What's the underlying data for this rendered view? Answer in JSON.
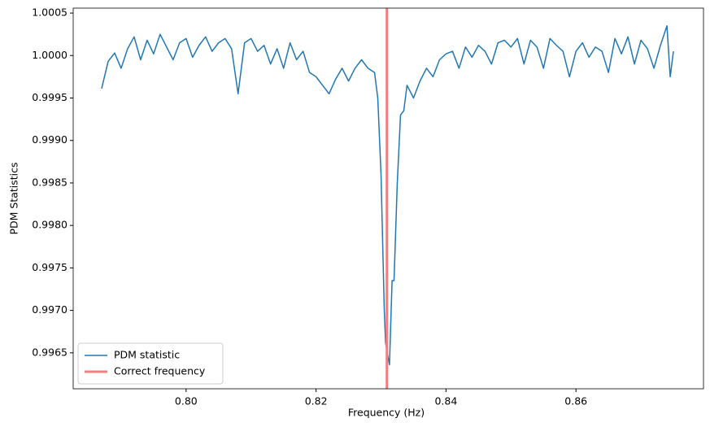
{
  "chart_data": {
    "type": "line",
    "xlabel": "Frequency (Hz)",
    "ylabel": "PDM Statistics",
    "x": [
      0.787,
      0.788,
      0.789,
      0.79,
      0.791,
      0.792,
      0.793,
      0.794,
      0.795,
      0.796,
      0.797,
      0.798,
      0.799,
      0.8,
      0.801,
      0.802,
      0.803,
      0.804,
      0.805,
      0.806,
      0.807,
      0.808,
      0.809,
      0.81,
      0.811,
      0.812,
      0.813,
      0.814,
      0.815,
      0.816,
      0.817,
      0.818,
      0.819,
      0.82,
      0.821,
      0.822,
      0.823,
      0.824,
      0.825,
      0.826,
      0.827,
      0.828,
      0.829,
      0.8295,
      0.83,
      0.8305,
      0.8307,
      0.831,
      0.8313,
      0.8317,
      0.832,
      0.8325,
      0.833,
      0.8335,
      0.834,
      0.835,
      0.836,
      0.837,
      0.838,
      0.839,
      0.84,
      0.841,
      0.842,
      0.843,
      0.844,
      0.845,
      0.846,
      0.847,
      0.848,
      0.849,
      0.85,
      0.851,
      0.852,
      0.853,
      0.854,
      0.855,
      0.856,
      0.857,
      0.858,
      0.859,
      0.86,
      0.861,
      0.862,
      0.863,
      0.864,
      0.865,
      0.866,
      0.867,
      0.868,
      0.869,
      0.87,
      0.871,
      0.872,
      0.873,
      0.874,
      0.8745,
      0.875
    ],
    "series": [
      {
        "name": "PDM statistic",
        "color": "#1f77b4",
        "values": [
          0.99961,
          0.99993,
          1.00003,
          0.99985,
          1.00008,
          1.00022,
          0.99995,
          1.00018,
          1.00002,
          1.00025,
          1.0001,
          0.99995,
          1.00015,
          1.0002,
          0.99998,
          1.00012,
          1.00022,
          1.00005,
          1.00015,
          1.0002,
          1.00008,
          0.99955,
          1.00015,
          1.0002,
          1.00005,
          1.00012,
          0.9999,
          1.00008,
          0.99985,
          1.00015,
          0.99995,
          1.00005,
          0.9998,
          0.99975,
          0.99965,
          0.99955,
          0.99972,
          0.99985,
          0.9997,
          0.99985,
          0.99995,
          0.99985,
          0.9998,
          0.9995,
          0.9986,
          0.997,
          0.99662,
          0.99648,
          0.99636,
          0.99735,
          0.99735,
          0.9985,
          0.9993,
          0.99935,
          0.99965,
          0.9995,
          0.9997,
          0.99985,
          0.99975,
          0.99995,
          1.00002,
          1.00005,
          0.99985,
          1.0001,
          0.99998,
          1.00012,
          1.00005,
          0.9999,
          1.00015,
          1.00018,
          1.0001,
          1.0002,
          0.9999,
          1.00018,
          1.0001,
          0.99985,
          1.0002,
          1.00012,
          1.00005,
          0.99975,
          1.00005,
          1.00015,
          0.99998,
          1.0001,
          1.00005,
          0.9998,
          1.0002,
          1.00002,
          1.00022,
          0.9999,
          1.00018,
          1.00008,
          0.99985,
          1.00012,
          1.00035,
          0.99975,
          1.00005
        ]
      }
    ],
    "vlines": [
      {
        "name": "Correct frequency",
        "x": 0.8309,
        "color": "#f08080"
      }
    ],
    "xlim": [
      0.782625,
      0.879625
    ],
    "ylim": [
      0.996077,
      1.000558
    ],
    "xticks": [
      {
        "value": 0.8,
        "label": "0.80"
      },
      {
        "value": 0.82,
        "label": "0.82"
      },
      {
        "value": 0.84,
        "label": "0.84"
      },
      {
        "value": 0.86,
        "label": "0.86"
      }
    ],
    "yticks": [
      0.9965,
      {
        "value": 0.997,
        "label": "0.9970"
      },
      0.9975,
      {
        "value": 0.998,
        "label": "0.9980"
      },
      0.9985,
      {
        "value": 0.999,
        "label": "0.9990"
      },
      0.9995,
      {
        "value": 1.0,
        "label": "1.0000"
      },
      1.0005
    ],
    "grid": false,
    "legend": "lower left"
  }
}
